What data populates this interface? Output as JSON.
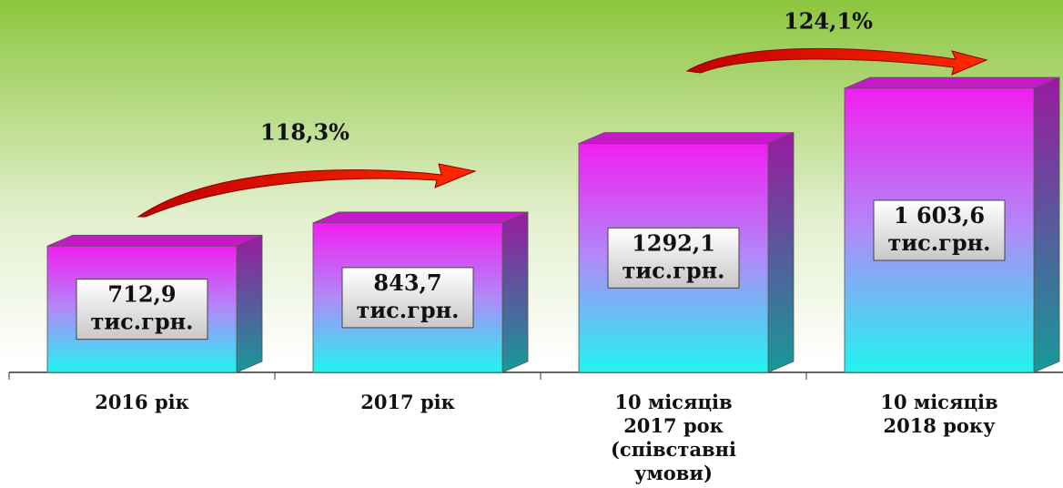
{
  "chart_data": {
    "type": "bar",
    "categories": [
      "2016 рік",
      "2017 рік",
      "10 місяців\n2017 рок\n(співставні\nумови)",
      "10 місяців\n2018 року"
    ],
    "values": [
      712.9,
      843.7,
      1292.1,
      1603.6
    ],
    "value_labels": [
      "712,9 тис.грн.",
      "843,7 тис.грн.",
      "1292,1 тис.грн.",
      "1 603,6 тис.грн."
    ],
    "annotations": [
      "118,3%",
      "124,1%"
    ]
  }
}
